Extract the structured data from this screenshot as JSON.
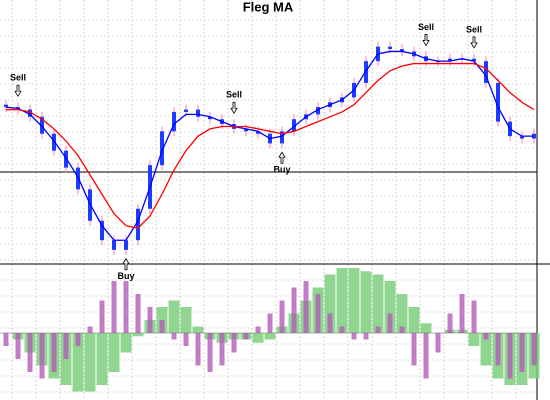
{
  "chart_data": [
    {
      "type": "candlestick",
      "title": "Fleg MA",
      "ylim": [
        0,
        100
      ],
      "candle_color": "#1e3cff",
      "wick_color": "#ff7fbf",
      "open": [
        65,
        64,
        63,
        60,
        53,
        46,
        39,
        30,
        17,
        9,
        5,
        9,
        22,
        40,
        54,
        62,
        63,
        60,
        59,
        57,
        55,
        54,
        53,
        49,
        54,
        59,
        61,
        64,
        66,
        68,
        74,
        83,
        89,
        88,
        87,
        85,
        83,
        83,
        84,
        84,
        83,
        74,
        58,
        52,
        51
      ],
      "high": [
        67,
        66,
        65,
        62,
        55,
        48,
        41,
        32,
        19,
        11,
        11,
        24,
        42,
        56,
        64,
        65,
        65,
        62,
        61,
        59,
        57,
        56,
        55,
        56,
        61,
        63,
        66,
        68,
        70,
        76,
        85,
        91,
        91,
        90,
        89,
        87,
        85,
        86,
        86,
        86,
        85,
        76,
        60,
        54,
        55
      ],
      "low": [
        62,
        61,
        58,
        51,
        44,
        37,
        28,
        15,
        7,
        3,
        3,
        7,
        20,
        38,
        52,
        60,
        58,
        57,
        55,
        53,
        52,
        51,
        47,
        47,
        52,
        57,
        59,
        62,
        64,
        66,
        72,
        81,
        86,
        85,
        83,
        81,
        81,
        81,
        82,
        81,
        72,
        56,
        50,
        49,
        49
      ],
      "close": [
        64,
        63,
        60,
        53,
        46,
        39,
        30,
        17,
        9,
        5,
        9,
        22,
        40,
        54,
        62,
        63,
        60,
        59,
        57,
        55,
        54,
        53,
        49,
        54,
        59,
        61,
        64,
        66,
        68,
        74,
        83,
        89,
        88,
        87,
        85,
        83,
        83,
        84,
        84,
        83,
        74,
        58,
        52,
        51,
        53
      ],
      "series": [
        {
          "color": "#0000ff",
          "values": [
            64,
            63.5,
            61,
            56,
            50,
            43,
            35,
            24,
            15,
            9,
            9,
            17,
            31,
            46,
            57,
            61,
            61,
            60,
            58,
            56,
            55,
            54,
            51,
            52,
            56,
            60,
            63,
            65,
            67,
            71,
            79,
            86,
            87,
            87,
            86,
            84,
            83,
            83,
            84,
            83,
            77,
            64,
            55,
            52,
            52
          ]
        },
        {
          "color": "#ff0000",
          "values": [
            63,
            63,
            62,
            59,
            55,
            50,
            44,
            36,
            28,
            20,
            15,
            14,
            19,
            28,
            38,
            46,
            52,
            55,
            56,
            56,
            56,
            55,
            54,
            53,
            54,
            56,
            58,
            60,
            62,
            65,
            70,
            75,
            79,
            81,
            82,
            82,
            82,
            82,
            82,
            82,
            80,
            75,
            70,
            66,
            63
          ]
        }
      ],
      "annotations": [
        {
          "text": "Sell",
          "index": 1,
          "side": "above"
        },
        {
          "text": "Buy",
          "index": 10,
          "side": "below"
        },
        {
          "text": "Sell",
          "index": 19,
          "side": "above"
        },
        {
          "text": "Buy",
          "index": 23,
          "side": "below"
        },
        {
          "text": "Sell",
          "index": 35,
          "side": "above"
        },
        {
          "text": "Sell",
          "index": 39,
          "side": "above"
        }
      ]
    },
    {
      "type": "histogram",
      "ylim": [
        -1,
        1
      ],
      "series": [
        {
          "color": "#7ccf7c",
          "values": [
            0,
            -0.1,
            -0.3,
            -0.5,
            -0.7,
            -0.8,
            -0.9,
            -0.9,
            -0.8,
            -0.6,
            -0.3,
            -0.05,
            0.2,
            0.4,
            0.5,
            0.4,
            0.1,
            -0.1,
            -0.15,
            -0.1,
            -0.1,
            -0.15,
            -0.1,
            0.1,
            0.3,
            0.5,
            0.7,
            0.9,
            1.0,
            1.0,
            0.95,
            0.9,
            0.8,
            0.6,
            0.4,
            0.15,
            0.0,
            0.05,
            0.05,
            -0.2,
            -0.5,
            -0.7,
            -0.8,
            -0.8,
            -0.7
          ]
        },
        {
          "color": "#b25cb8",
          "values": [
            -0.2,
            -0.4,
            -0.6,
            -0.7,
            -0.6,
            -0.4,
            -0.2,
            0.1,
            0.5,
            0.8,
            0.8,
            0.6,
            0.4,
            0.2,
            -0.1,
            -0.2,
            -0.5,
            -0.6,
            -0.5,
            -0.3,
            -0.1,
            0.1,
            0.3,
            0.5,
            0.7,
            0.8,
            0.6,
            0.3,
            0.1,
            -0.1,
            -0.1,
            0.1,
            0.3,
            0.1,
            -0.5,
            -0.7,
            -0.3,
            0.3,
            0.6,
            0.5,
            -0.1,
            -0.5,
            -0.7,
            -0.6,
            -0.5
          ]
        }
      ]
    }
  ]
}
